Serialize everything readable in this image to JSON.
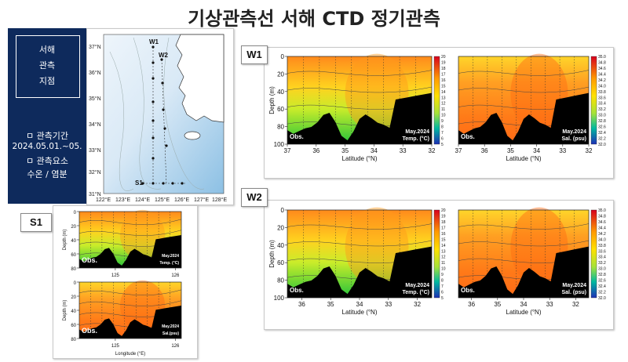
{
  "title": "기상관측선 서해 CTD 정기관측",
  "info": {
    "box_lines": [
      "서해",
      "관측",
      "지점"
    ],
    "period_label": "ㅁ 관측기간",
    "period_value": "2024.05.01.~05.",
    "elements_label": "ㅁ 관측요소",
    "elements_value": "수온 / 염분"
  },
  "map": {
    "lat_ticks": [
      "37°N",
      "36°N",
      "35°N",
      "34°N",
      "33°N",
      "32°N",
      "31°N"
    ],
    "lon_ticks": [
      "122°E",
      "123°E",
      "124°E",
      "125°E",
      "126°E",
      "127°E",
      "128°E"
    ],
    "station_labels": [
      "W1",
      "W2",
      "S1"
    ],
    "colors": {
      "sea_light": "#e3eef8",
      "sea_deep": "#8fc1e3",
      "land": "#ffffff"
    }
  },
  "chart_data": [
    {
      "id": "W1-temp",
      "type": "heatmap",
      "panel_tag": "W1",
      "obs_label": "Obs.",
      "date_label": "May.2024",
      "var_label": "Temp. (°C)",
      "xlabel": "Latitude (°N)",
      "ylabel": "Depth (m)",
      "x_ticks": [
        "37",
        "36",
        "35",
        "34",
        "33",
        "32"
      ],
      "xlim": [
        37,
        32
      ],
      "y_ticks": [
        "0",
        "20",
        "40",
        "60",
        "80",
        "100"
      ],
      "ylim": [
        0,
        100
      ],
      "colorbar_ticks": [
        "20",
        "19",
        "18",
        "17",
        "16",
        "15",
        "14",
        "13",
        "12",
        "11",
        "10",
        "9",
        "8",
        "7",
        "6",
        "5"
      ],
      "colorbar_range": [
        5,
        20
      ]
    },
    {
      "id": "W1-sal",
      "type": "heatmap",
      "obs_label": "Obs.",
      "date_label": "May.2024",
      "var_label": "Sal. (psu)",
      "xlabel": "Latitude (°N)",
      "ylabel": "",
      "x_ticks": [
        "37",
        "36",
        "35",
        "34",
        "33",
        "32"
      ],
      "xlim": [
        37,
        32
      ],
      "y_ticks": [],
      "ylim": [
        0,
        100
      ],
      "colorbar_ticks": [
        "35.0",
        "34.8",
        "34.6",
        "34.4",
        "34.2",
        "34.0",
        "33.8",
        "33.6",
        "33.4",
        "33.2",
        "33.0",
        "32.8",
        "32.6",
        "32.4",
        "32.2",
        "32.0"
      ],
      "colorbar_range": [
        32.0,
        35.0
      ]
    },
    {
      "id": "W2-temp",
      "type": "heatmap",
      "panel_tag": "W2",
      "obs_label": "Obs.",
      "date_label": "May.2024",
      "var_label": "Temp. (°C)",
      "xlabel": "Latitude (°N)",
      "ylabel": "Depth (m)",
      "x_ticks": [
        "36",
        "35",
        "34",
        "33",
        "32"
      ],
      "xlim": [
        36.5,
        31.5
      ],
      "y_ticks": [
        "0",
        "20",
        "40",
        "60",
        "80",
        "100"
      ],
      "ylim": [
        0,
        100
      ],
      "colorbar_ticks": [
        "20",
        "19",
        "18",
        "17",
        "16",
        "15",
        "14",
        "13",
        "12",
        "11",
        "10",
        "9",
        "8",
        "7",
        "6",
        "5"
      ],
      "colorbar_range": [
        5,
        20
      ]
    },
    {
      "id": "W2-sal",
      "type": "heatmap",
      "obs_label": "Obs.",
      "date_label": "May.2024",
      "var_label": "Sal. (psu)",
      "xlabel": "Latitude (°N)",
      "ylabel": "",
      "x_ticks": [
        "36",
        "35",
        "34",
        "33",
        "32"
      ],
      "xlim": [
        36.5,
        31.5
      ],
      "y_ticks": [],
      "ylim": [
        0,
        100
      ],
      "colorbar_ticks": [
        "35.0",
        "34.8",
        "34.6",
        "34.4",
        "34.2",
        "34.0",
        "33.8",
        "33.6",
        "33.4",
        "33.2",
        "33.0",
        "32.8",
        "32.6",
        "32.4",
        "32.2",
        "32.0"
      ],
      "colorbar_range": [
        32.0,
        35.0
      ]
    },
    {
      "id": "S1-temp",
      "type": "heatmap",
      "panel_tag": "S1",
      "obs_label": "Obs.",
      "date_label": "May.2024",
      "var_label": "Temp. (°C)",
      "xlabel": "",
      "ylabel": "Depth (m)",
      "x_ticks": [
        "125",
        "126"
      ],
      "xlim": [
        124.4,
        126.1
      ],
      "y_ticks": [
        "0",
        "20",
        "40",
        "60",
        "80"
      ],
      "ylim": [
        0,
        80
      ]
    },
    {
      "id": "S1-sal",
      "type": "heatmap",
      "obs_label": "Obs.",
      "date_label": "May.2024",
      "var_label": "Sal.(psu)",
      "xlabel": "Longitude (°E)",
      "ylabel": "Depth (m)",
      "x_ticks": [
        "125",
        "126"
      ],
      "xlim": [
        124.4,
        126.1
      ],
      "y_ticks": [
        "0",
        "20",
        "40",
        "60",
        "80"
      ],
      "ylim": [
        0,
        80
      ]
    }
  ]
}
